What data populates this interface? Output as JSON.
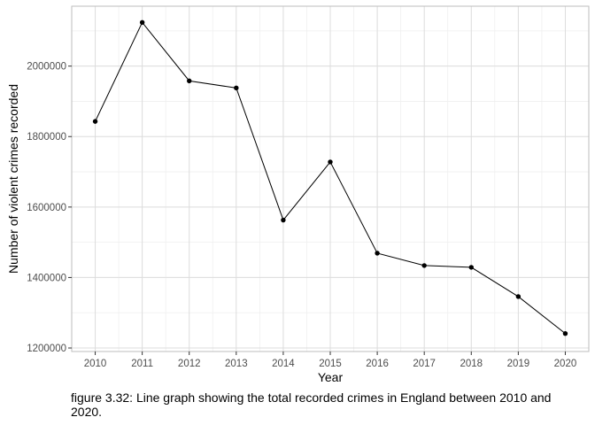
{
  "chart_data": {
    "type": "line",
    "title": "",
    "xlabel": "Year",
    "ylabel": "Number of violent crimes recorded",
    "x": [
      2010,
      2011,
      2012,
      2013,
      2014,
      2015,
      2016,
      2017,
      2018,
      2019,
      2020
    ],
    "x_tick_labels": [
      "2010",
      "2011",
      "2012",
      "2013",
      "2014",
      "2015",
      "2016",
      "2017",
      "2018",
      "2019",
      "2020"
    ],
    "y_tick_values": [
      1200000,
      1400000,
      1600000,
      1800000,
      2000000
    ],
    "y_tick_labels": [
      "1200000",
      "1400000",
      "1600000",
      "1800000",
      "2000000"
    ],
    "series": [
      {
        "values": [
          1843000,
          2124000,
          1958000,
          1938000,
          1563000,
          1728000,
          1469000,
          1434000,
          1429000,
          1346000,
          1241000
        ]
      }
    ],
    "xlim": [
      2009.5,
      2020.5
    ],
    "ylim": [
      1190000,
      2170000
    ],
    "grid": true,
    "legend": "none",
    "colors": {
      "line": "#000000",
      "point": "#000000",
      "grid_major": "#dcdcdc",
      "grid_minor": "#efefef",
      "panel_border": "#bdbdbd"
    }
  },
  "caption": "figure 3.32: Line graph showing the total recorded crimes in England between 2010 and 2020."
}
